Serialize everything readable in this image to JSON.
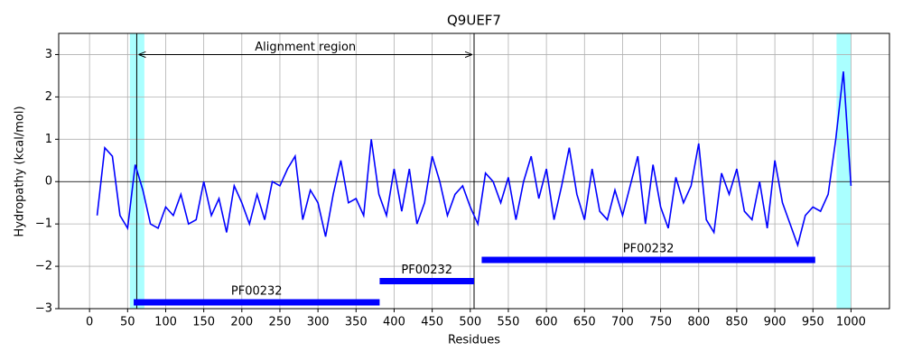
{
  "chart_data": {
    "type": "line",
    "title": "Q9UEF7",
    "x_label": "Residues",
    "y_label": "Hydropathy (kcal/mol)",
    "x": [
      10,
      20,
      30,
      40,
      50,
      60,
      70,
      80,
      90,
      100,
      110,
      120,
      130,
      140,
      150,
      160,
      170,
      180,
      190,
      200,
      210,
      220,
      230,
      240,
      250,
      260,
      270,
      280,
      290,
      300,
      310,
      320,
      330,
      340,
      350,
      360,
      370,
      380,
      390,
      400,
      410,
      420,
      430,
      440,
      450,
      460,
      470,
      480,
      490,
      500,
      510,
      520,
      530,
      540,
      550,
      560,
      570,
      580,
      590,
      600,
      610,
      620,
      630,
      640,
      650,
      660,
      670,
      680,
      690,
      700,
      710,
      720,
      730,
      740,
      750,
      760,
      770,
      780,
      790,
      800,
      810,
      820,
      830,
      840,
      850,
      860,
      870,
      880,
      890,
      900,
      910,
      920,
      930,
      940,
      950,
      960,
      970,
      980,
      990,
      1000
    ],
    "values": [
      -0.8,
      0.8,
      0.6,
      -0.8,
      -1.1,
      0.4,
      -0.2,
      -1.0,
      -1.1,
      -0.6,
      -0.8,
      -0.3,
      -1.0,
      -0.9,
      0.0,
      -0.8,
      -0.4,
      -1.2,
      -0.1,
      -0.5,
      -1.0,
      -0.3,
      -0.9,
      0.0,
      -0.1,
      0.3,
      0.6,
      -0.9,
      -0.2,
      -0.5,
      -1.3,
      -0.3,
      0.5,
      -0.5,
      -0.4,
      -0.8,
      1.0,
      -0.3,
      -0.8,
      0.3,
      -0.7,
      0.3,
      -1.0,
      -0.5,
      0.6,
      0.0,
      -0.8,
      -0.3,
      -0.1,
      -0.6,
      -1.0,
      0.2,
      0.0,
      -0.5,
      0.1,
      -0.9,
      0.0,
      0.6,
      -0.4,
      0.3,
      -0.9,
      -0.1,
      0.8,
      -0.3,
      -0.9,
      0.3,
      -0.7,
      -0.9,
      -0.2,
      -0.8,
      -0.1,
      0.6,
      -1.0,
      0.4,
      -0.6,
      -1.1,
      0.1,
      -0.5,
      -0.1,
      0.9,
      -0.9,
      -1.2,
      0.2,
      -0.3,
      0.3,
      -0.7,
      -0.9,
      0.0,
      -1.1,
      0.5,
      -0.5,
      -1.0,
      -1.5,
      -0.8,
      -0.6,
      -0.7,
      -0.3,
      1.0,
      2.6,
      -0.1
    ],
    "color": "#0000ff",
    "xlim": [
      -40.5,
      1050.5
    ],
    "ylim": [
      -3,
      3.5
    ],
    "xticks": [
      0,
      50,
      100,
      150,
      200,
      250,
      300,
      350,
      400,
      450,
      500,
      550,
      600,
      650,
      700,
      750,
      800,
      850,
      900,
      950,
      1000
    ],
    "yticks": [
      {
        "value": -3,
        "label": "−3"
      },
      {
        "value": -2,
        "label": "−2"
      },
      {
        "value": -1,
        "label": "−1"
      },
      0,
      1,
      2,
      3
    ],
    "grid": true,
    "spans": [
      {
        "start": 53,
        "end": 72,
        "color": "#aaffff"
      },
      {
        "start": 981,
        "end": 1000,
        "color": "#aaffff"
      }
    ],
    "vlines": [
      62,
      505
    ],
    "hline": 0,
    "annotation": {
      "text": "Alignment region",
      "x_start": 62,
      "x_end": 505,
      "y": 3
    },
    "domains": [
      {
        "label": "PF00232",
        "start": 58,
        "end": 381,
        "y": -2.85,
        "color": "#0000ff"
      },
      {
        "label": "PF00232",
        "start": 381,
        "end": 505,
        "y": -2.35,
        "color": "#0000ff"
      },
      {
        "label": "PF00232",
        "start": 515,
        "end": 953,
        "y": -1.85,
        "color": "#0000ff"
      }
    ]
  }
}
